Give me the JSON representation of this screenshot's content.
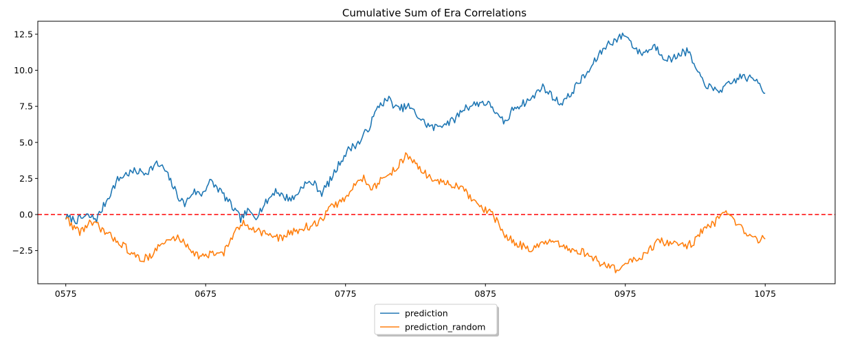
{
  "chart_data": {
    "type": "line",
    "title": "Cumulative Sum of Era Correlations",
    "xlabel": "",
    "ylabel": "",
    "x_range": [
      575,
      1075
    ],
    "xlim": [
      555,
      1125
    ],
    "ylim": [
      -4.8,
      13.4
    ],
    "x_ticks": [
      "0575",
      "0675",
      "0775",
      "0875",
      "0975",
      "1075"
    ],
    "x_tick_values": [
      575,
      675,
      775,
      875,
      975,
      1075
    ],
    "y_ticks": [
      "−2.5",
      "0.0",
      "2.5",
      "5.0",
      "7.5",
      "10.0",
      "12.5"
    ],
    "y_tick_values": [
      -2.5,
      0.0,
      2.5,
      5.0,
      7.5,
      10.0,
      12.5
    ],
    "grid": false,
    "reference_line": {
      "y": 0.0,
      "style": "dashed",
      "color": "#ff0000"
    },
    "legend_position": "bottom-center",
    "series": [
      {
        "name": "prediction",
        "color": "#1f77b4",
        "keypoints": [
          [
            575,
            -0.2
          ],
          [
            583,
            -0.4
          ],
          [
            590,
            -0.1
          ],
          [
            597,
            -0.3
          ],
          [
            600,
            0.2
          ],
          [
            607,
            1.5
          ],
          [
            612,
            2.4
          ],
          [
            618,
            2.8
          ],
          [
            625,
            3.0
          ],
          [
            632,
            2.9
          ],
          [
            640,
            3.5
          ],
          [
            645,
            3.2
          ],
          [
            650,
            2.3
          ],
          [
            655,
            1.3
          ],
          [
            660,
            0.7
          ],
          [
            666,
            1.6
          ],
          [
            672,
            1.4
          ],
          [
            678,
            2.3
          ],
          [
            685,
            1.7
          ],
          [
            692,
            0.8
          ],
          [
            700,
            -0.3
          ],
          [
            705,
            0.2
          ],
          [
            711,
            -0.1
          ],
          [
            718,
            0.8
          ],
          [
            725,
            1.7
          ],
          [
            731,
            1.2
          ],
          [
            738,
            1.1
          ],
          [
            745,
            2.1
          ],
          [
            752,
            2.2
          ],
          [
            758,
            1.5
          ],
          [
            765,
            2.5
          ],
          [
            772,
            3.8
          ],
          [
            778,
            4.6
          ],
          [
            785,
            5.0
          ],
          [
            792,
            6.1
          ],
          [
            799,
            7.6
          ],
          [
            806,
            8.0
          ],
          [
            812,
            7.3
          ],
          [
            820,
            7.5
          ],
          [
            826,
            6.9
          ],
          [
            832,
            6.3
          ],
          [
            838,
            6.0
          ],
          [
            845,
            6.3
          ],
          [
            852,
            6.5
          ],
          [
            860,
            7.4
          ],
          [
            866,
            7.6
          ],
          [
            873,
            7.8
          ],
          [
            880,
            7.5
          ],
          [
            885,
            6.6
          ],
          [
            890,
            6.4
          ],
          [
            895,
            7.4
          ],
          [
            902,
            7.7
          ],
          [
            909,
            8.1
          ],
          [
            915,
            8.9
          ],
          [
            922,
            8.3
          ],
          [
            928,
            7.7
          ],
          [
            935,
            8.2
          ],
          [
            941,
            9.1
          ],
          [
            948,
            9.8
          ],
          [
            955,
            10.9
          ],
          [
            962,
            11.8
          ],
          [
            968,
            12.1
          ],
          [
            975,
            12.5
          ],
          [
            980,
            11.8
          ],
          [
            985,
            11.2
          ],
          [
            990,
            11.3
          ],
          [
            996,
            11.7
          ],
          [
            1002,
            11.0
          ],
          [
            1008,
            10.7
          ],
          [
            1014,
            11.2
          ],
          [
            1020,
            11.3
          ],
          [
            1027,
            9.7
          ],
          [
            1033,
            9.0
          ],
          [
            1038,
            8.6
          ],
          [
            1045,
            8.7
          ],
          [
            1052,
            9.2
          ],
          [
            1058,
            9.6
          ],
          [
            1064,
            9.4
          ],
          [
            1070,
            9.3
          ],
          [
            1075,
            8.4
          ]
        ]
      },
      {
        "name": "prediction_random",
        "color": "#ff7f0e",
        "keypoints": [
          [
            575,
            -0.2
          ],
          [
            580,
            -0.8
          ],
          [
            585,
            -1.2
          ],
          [
            592,
            -0.6
          ],
          [
            598,
            -0.8
          ],
          [
            605,
            -1.4
          ],
          [
            612,
            -1.8
          ],
          [
            618,
            -2.3
          ],
          [
            624,
            -2.9
          ],
          [
            630,
            -3.1
          ],
          [
            636,
            -2.8
          ],
          [
            642,
            -2.2
          ],
          [
            648,
            -1.8
          ],
          [
            655,
            -1.6
          ],
          [
            662,
            -2.1
          ],
          [
            668,
            -2.8
          ],
          [
            675,
            -2.9
          ],
          [
            681,
            -2.7
          ],
          [
            688,
            -2.6
          ],
          [
            695,
            -1.4
          ],
          [
            702,
            -0.6
          ],
          [
            709,
            -0.9
          ],
          [
            714,
            -1.2
          ],
          [
            721,
            -1.4
          ],
          [
            727,
            -1.7
          ],
          [
            733,
            -1.4
          ],
          [
            738,
            -1.2
          ],
          [
            745,
            -0.9
          ],
          [
            750,
            -0.8
          ],
          [
            756,
            -0.6
          ],
          [
            763,
            0.4
          ],
          [
            770,
            0.8
          ],
          [
            776,
            1.2
          ],
          [
            782,
            2.1
          ],
          [
            788,
            2.6
          ],
          [
            794,
            1.8
          ],
          [
            800,
            2.3
          ],
          [
            806,
            2.8
          ],
          [
            812,
            3.3
          ],
          [
            818,
            4.1
          ],
          [
            824,
            3.6
          ],
          [
            830,
            3.0
          ],
          [
            836,
            2.5
          ],
          [
            842,
            2.3
          ],
          [
            848,
            2.1
          ],
          [
            854,
            2.0
          ],
          [
            860,
            1.6
          ],
          [
            866,
            1.0
          ],
          [
            872,
            0.4
          ],
          [
            878,
            0.2
          ],
          [
            884,
            -0.6
          ],
          [
            890,
            -1.6
          ],
          [
            896,
            -1.9
          ],
          [
            902,
            -2.2
          ],
          [
            909,
            -2.4
          ],
          [
            915,
            -2.1
          ],
          [
            921,
            -1.9
          ],
          [
            927,
            -2.1
          ],
          [
            933,
            -2.4
          ],
          [
            939,
            -2.5
          ],
          [
            945,
            -2.6
          ],
          [
            951,
            -2.9
          ],
          [
            957,
            -3.4
          ],
          [
            963,
            -3.5
          ],
          [
            970,
            -3.9
          ],
          [
            976,
            -3.4
          ],
          [
            982,
            -3.1
          ],
          [
            988,
            -2.8
          ],
          [
            994,
            -2.3
          ],
          [
            1000,
            -1.8
          ],
          [
            1006,
            -2.1
          ],
          [
            1012,
            -1.9
          ],
          [
            1018,
            -2.2
          ],
          [
            1024,
            -1.9
          ],
          [
            1030,
            -1.1
          ],
          [
            1036,
            -0.8
          ],
          [
            1042,
            -0.3
          ],
          [
            1047,
            0.0
          ],
          [
            1052,
            -0.4
          ],
          [
            1058,
            -1.0
          ],
          [
            1064,
            -1.5
          ],
          [
            1070,
            -1.7
          ],
          [
            1075,
            -1.7
          ]
        ]
      }
    ]
  }
}
